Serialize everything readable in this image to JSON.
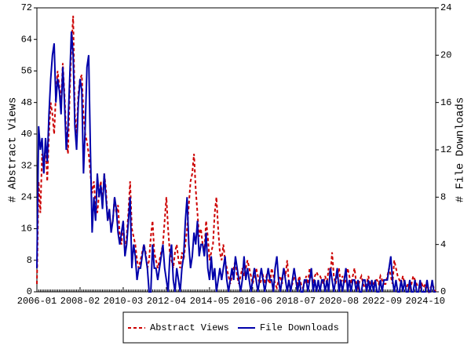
{
  "chart_data": {
    "type": "line",
    "categories": [
      "2006-01",
      null,
      null,
      null,
      null,
      null,
      null,
      null,
      null,
      null,
      null,
      null,
      null,
      null,
      null,
      null,
      null,
      null,
      null,
      null,
      null,
      null,
      null,
      null,
      null,
      "2008-02",
      null,
      null,
      null,
      null,
      null,
      null,
      null,
      null,
      null,
      null,
      null,
      null,
      null,
      null,
      null,
      null,
      null,
      null,
      null,
      null,
      null,
      null,
      null,
      null,
      "2010-03",
      null,
      null,
      null,
      null,
      null,
      null,
      null,
      null,
      null,
      null,
      null,
      null,
      null,
      null,
      null,
      null,
      null,
      null,
      null,
      null,
      null,
      null,
      null,
      null,
      "2012-04",
      null,
      null,
      null,
      null,
      null,
      null,
      null,
      null,
      null,
      null,
      null,
      null,
      null,
      null,
      null,
      null,
      null,
      null,
      null,
      null,
      null,
      null,
      null,
      null,
      "2014-05",
      null,
      null,
      null,
      null,
      null,
      null,
      null,
      null,
      null,
      null,
      null,
      null,
      null,
      null,
      null,
      null,
      null,
      null,
      null,
      null,
      null,
      null,
      null,
      null,
      "2016-06",
      null,
      null,
      null,
      null,
      null,
      null,
      null,
      null,
      null,
      null,
      null,
      null,
      null,
      null,
      null,
      null,
      null,
      null,
      null,
      null,
      null,
      null,
      null,
      null,
      "2018-07",
      null,
      null,
      null,
      null,
      null,
      null,
      null,
      null,
      null,
      null,
      null,
      null,
      null,
      null,
      null,
      null,
      null,
      null,
      null,
      null,
      null,
      null,
      null,
      null,
      "2020-08",
      null,
      null,
      null,
      null,
      null,
      null,
      null,
      null,
      null,
      null,
      null,
      null,
      null,
      null,
      null,
      null,
      null,
      null,
      null,
      null,
      null,
      null,
      null,
      null,
      "2022-09",
      null,
      null,
      null,
      null,
      null,
      null,
      null,
      null,
      null,
      null,
      null,
      null,
      null,
      null,
      null,
      null,
      null,
      null,
      null,
      null,
      null,
      null,
      null,
      null,
      "2024-10",
      null,
      null,
      null,
      null,
      null,
      null
    ],
    "series": [
      {
        "name": "Abstract Views",
        "color": "#cc0000",
        "dash": true,
        "axis": "y",
        "values": [
          2,
          28,
          20,
          35,
          30,
          38,
          28,
          40,
          48,
          45,
          40,
          50,
          56,
          52,
          48,
          58,
          50,
          40,
          35,
          50,
          62,
          70,
          45,
          40,
          50,
          54,
          55,
          45,
          40,
          38,
          35,
          30,
          25,
          28,
          22,
          20,
          25,
          28,
          22,
          30,
          26,
          18,
          20,
          16,
          18,
          24,
          20,
          22,
          14,
          12,
          18,
          10,
          14,
          20,
          28,
          16,
          14,
          12,
          8,
          6,
          8,
          10,
          12,
          10,
          6,
          8,
          14,
          18,
          10,
          8,
          6,
          8,
          10,
          12,
          18,
          24,
          16,
          10,
          8,
          6,
          10,
          12,
          8,
          6,
          10,
          8,
          12,
          16,
          22,
          28,
          30,
          35,
          26,
          20,
          14,
          16,
          12,
          10,
          18,
          14,
          8,
          10,
          12,
          20,
          24,
          16,
          10,
          8,
          12,
          8,
          6,
          4,
          2,
          4,
          6,
          8,
          4,
          2,
          4,
          6,
          4,
          6,
          8,
          6,
          4,
          2,
          4,
          6,
          4,
          2,
          3,
          4,
          2,
          4,
          3,
          2,
          6,
          4,
          2,
          1,
          3,
          4,
          2,
          6,
          4,
          8,
          2,
          1,
          2,
          4,
          3,
          2,
          4,
          2,
          1,
          2,
          4,
          2,
          6,
          4,
          2,
          4,
          5,
          4,
          4,
          3,
          2,
          4,
          2,
          6,
          4,
          10,
          4,
          2,
          4,
          6,
          2,
          4,
          2,
          3,
          6,
          4,
          2,
          4,
          6,
          2,
          1,
          3,
          4,
          2,
          1,
          2,
          4,
          2,
          2,
          2,
          3,
          3,
          2,
          4,
          3,
          2,
          2,
          4,
          6,
          4,
          2,
          8,
          6,
          4,
          3,
          2,
          4,
          2,
          1,
          2,
          1,
          2,
          4,
          3,
          2,
          1,
          1,
          2,
          1,
          2,
          1,
          0,
          1,
          2,
          1,
          0
        ]
      },
      {
        "name": "File Downloads",
        "color": "#0000aa",
        "dash": false,
        "axis": "y2",
        "values": [
          2,
          14,
          12,
          13,
          10,
          13,
          11,
          15,
          18,
          20,
          21,
          16,
          18,
          17,
          15,
          19,
          16,
          12,
          14,
          18,
          22,
          20,
          14,
          12,
          16,
          18,
          17,
          10,
          14,
          19,
          20,
          12,
          5,
          8,
          6,
          10,
          8,
          9,
          7,
          10,
          8,
          6,
          7,
          5,
          6,
          8,
          7,
          5,
          4,
          5,
          6,
          3,
          4,
          6,
          8,
          2,
          4,
          3,
          1,
          2,
          2,
          3,
          4,
          3,
          2,
          0,
          0,
          4,
          2,
          2,
          1,
          2,
          3,
          4,
          2,
          1,
          0,
          3,
          4,
          1,
          0,
          2,
          1,
          0,
          2,
          3,
          6,
          8,
          4,
          2,
          3,
          5,
          4,
          6,
          3,
          4,
          4,
          3,
          5,
          2,
          1,
          3,
          1,
          2,
          0,
          1,
          2,
          1,
          2,
          3,
          1,
          0,
          1,
          2,
          1,
          3,
          2,
          1,
          0,
          1,
          3,
          1,
          2,
          1,
          0,
          1,
          2,
          1,
          0,
          1,
          2,
          1,
          0,
          1,
          2,
          1,
          1,
          0,
          2,
          3,
          1,
          0,
          1,
          2,
          1,
          0,
          1,
          0,
          1,
          2,
          1,
          0,
          1,
          0,
          0,
          1,
          1,
          0,
          1,
          2,
          0,
          1,
          0,
          1,
          0,
          1,
          1,
          0,
          1,
          0,
          2,
          1,
          0,
          1,
          2,
          0,
          1,
          0,
          1,
          2,
          0,
          1,
          0,
          1,
          1,
          0,
          1,
          0,
          0,
          1,
          1,
          0,
          1,
          0,
          1,
          0,
          1,
          0,
          0,
          1,
          0,
          1,
          1,
          1,
          2,
          3,
          1,
          0,
          1,
          0,
          0,
          1,
          0,
          1,
          0,
          0,
          1,
          0,
          0,
          1,
          0,
          0,
          1,
          0,
          0,
          0,
          1,
          0,
          0,
          1,
          0,
          0
        ]
      }
    ],
    "ylabel": "# Abstract Views",
    "y2label": "# File Downloads",
    "ylim": [
      0,
      72
    ],
    "yticks": [
      0,
      8,
      16,
      24,
      32,
      40,
      48,
      56,
      64,
      72
    ],
    "y2lim": [
      0,
      24
    ],
    "y2ticks": [
      0,
      4,
      8,
      12,
      16,
      20,
      24
    ]
  }
}
